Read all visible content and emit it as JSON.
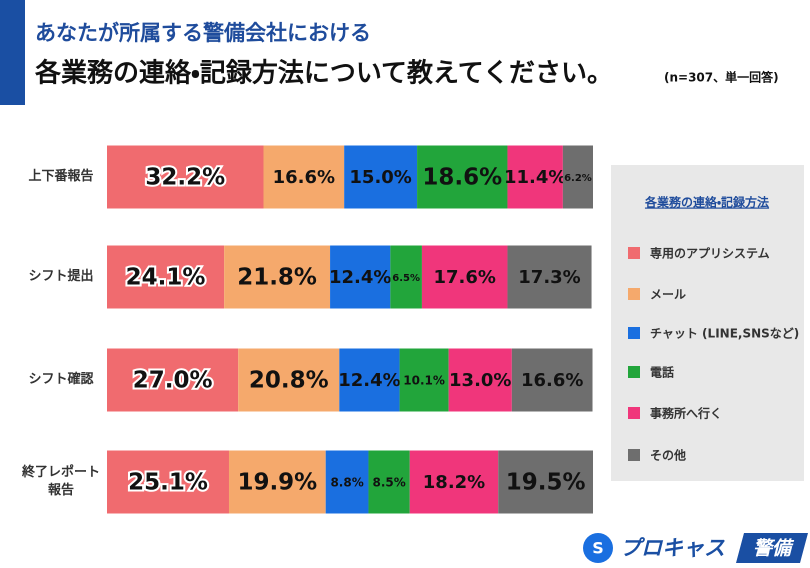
{
  "chart_data": {
    "type": "stacked_barh",
    "title": "あなたが所属する警備会社における",
    "subtitle": "各業務の連絡・記録方法について教えてください。",
    "note": "(n=307、単一回答)",
    "categories": [
      "上下番報告",
      "シフト提出",
      "シフト確認",
      "終了レポート報告"
    ],
    "xlim": [
      0,
      100
    ],
    "legend_title": "各業務の連絡・記録方法",
    "legend_position": "right",
    "series": [
      {
        "name": "専用のアプリシステム",
        "color": "#f06b6f",
        "values": [
          32.2,
          24.1,
          27.0,
          25.1
        ],
        "value_labels": [
          "32.2%",
          "24.1%",
          "27.0%",
          "25.1%"
        ]
      },
      {
        "name": "メール",
        "color": "#f5a96c",
        "values": [
          16.6,
          21.8,
          20.8,
          19.9
        ],
        "value_labels": [
          "16.6%",
          "21.8%",
          "20.8%",
          "19.9%"
        ]
      },
      {
        "name": "チャット (LINE,SNSなど)",
        "color": "#1a6fe0",
        "values": [
          15.0,
          12.4,
          12.4,
          8.8
        ],
        "value_labels": [
          "15.0%",
          "12.4%",
          "12.4%",
          "8.8%"
        ]
      },
      {
        "name": "電話",
        "color": "#22a53b",
        "values": [
          18.6,
          6.5,
          10.1,
          8.5
        ],
        "value_labels": [
          "18.6%",
          "6.5%",
          "10.1%",
          "8.5%"
        ]
      },
      {
        "name": "事務所へ行く",
        "color": "#f0367b",
        "values": [
          11.4,
          17.6,
          13.0,
          18.2
        ],
        "value_labels": [
          "11.4%",
          "17.6%",
          "13.0%",
          "18.2%"
        ]
      },
      {
        "name": "その他",
        "color": "#6e6e6e",
        "values": [
          6.2,
          17.3,
          16.6,
          19.5
        ],
        "value_labels": [
          "6.2%",
          "17.3%",
          "16.6%",
          "19.5%"
        ]
      }
    ]
  },
  "logo": {
    "text": "プロキャス",
    "badge": "警備"
  }
}
